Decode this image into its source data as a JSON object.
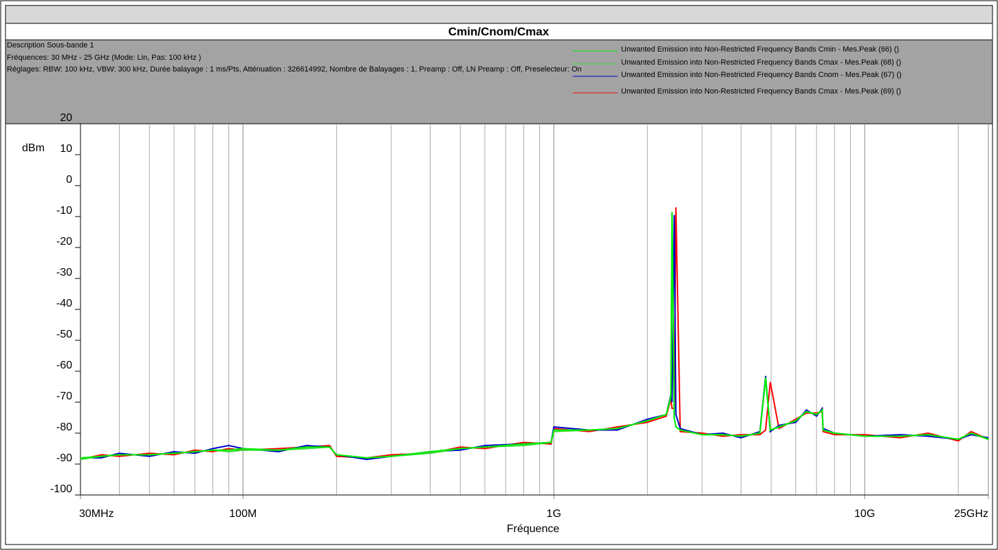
{
  "chart_data": {
    "type": "line",
    "title": "Cmin/Cnom/Cmax",
    "annotations": [
      "Description Sous-bande 1",
      "Fréquences: 30 MHz - 25 GHz (Mode: Lin, Pas: 100 kHz )",
      "Réglages: RBW: 100 kHz, VBW: 300 kHz, Durée balayage : 1 ms/Pts, Atténuation : 326614992, Nombre de Balayages : 1, Preamp : Off, LN Preamp : Off, Preselecteur: On"
    ],
    "y_label": "dBm",
    "x_label": "Fréquence",
    "xscale": "log",
    "xlim": [
      30000000,
      25000000000
    ],
    "xticks": [
      {
        "value": 30000000,
        "label": "30MHz"
      },
      {
        "value": 100000000,
        "label": "100M"
      },
      {
        "value": 1000000000,
        "label": "1G"
      },
      {
        "value": 10000000000,
        "label": "10G"
      },
      {
        "value": 25000000000,
        "label": "25GHz"
      }
    ],
    "xminorticks": [
      40000000,
      50000000,
      60000000,
      70000000,
      80000000,
      90000000,
      200000000,
      300000000,
      400000000,
      500000000,
      600000000,
      700000000,
      800000000,
      900000000,
      2000000000,
      3000000000,
      4000000000,
      5000000000,
      6000000000,
      7000000000,
      8000000000,
      9000000000,
      20000000000
    ],
    "ylim": [
      -100,
      20
    ],
    "yticks": [
      -100,
      -90,
      -80,
      -70,
      -60,
      -50,
      -40,
      -30,
      -20,
      -10,
      0,
      10,
      20
    ],
    "grid": true,
    "legend": "top-right",
    "x": [
      30000000,
      35000000,
      40000000,
      50000000,
      60000000,
      70000000,
      80000000,
      90000000,
      100000000,
      130000000,
      160000000,
      190000000,
      200000000,
      250000000,
      300000000,
      400000000,
      500000000,
      600000000,
      800000000,
      980000000,
      1000000000,
      1300000000,
      1600000000,
      2000000000,
      2300000000,
      2380000000,
      2400000000,
      2440000000,
      2470000000,
      2550000000,
      3000000000,
      3500000000,
      4000000000,
      4600000000,
      4800000000,
      4970000000,
      5300000000,
      6000000000,
      6500000000,
      7000000000,
      7300000000,
      7350000000,
      8000000000,
      10000000000,
      13000000000,
      16000000000,
      20000000000,
      22000000000,
      25000000000
    ],
    "series": [
      {
        "name": "Unwanted Emission into Non-Restricted Frequency Bands Cmax - Mes.Peak (69) ()",
        "color": "#ff0000",
        "values": [
          -88.5,
          -87,
          -87.5,
          -86.5,
          -87,
          -85.5,
          -86,
          -85,
          -85.5,
          -85,
          -84.5,
          -84,
          -87.5,
          -88,
          -87,
          -86.5,
          -84.5,
          -85,
          -83,
          -83.5,
          -78.5,
          -79.5,
          -78,
          -76.5,
          -74.5,
          -69,
          -72,
          -72,
          -7,
          -79.5,
          -80,
          -81,
          -80.5,
          -80.5,
          -79,
          -63.5,
          -78.5,
          -75.5,
          -73.5,
          -73.5,
          -73,
          -79.5,
          -80.5,
          -80.5,
          -81.5,
          -80,
          -82.5,
          -79.5,
          -82
        ]
      },
      {
        "name": "Unwanted Emission into Non-Restricted Frequency Bands Cnom - Mes.Peak (67) ()",
        "color": "#0000cc",
        "values": [
          -88,
          -88,
          -86.5,
          -87.5,
          -86,
          -86.5,
          -85,
          -84,
          -85,
          -86,
          -84,
          -84.5,
          -87,
          -88.5,
          -87.5,
          -86,
          -85.5,
          -84,
          -83.5,
          -83,
          -78,
          -79,
          -79,
          -75.5,
          -74,
          -67.5,
          -70,
          -9.5,
          -74,
          -78.5,
          -80.5,
          -80,
          -81.5,
          -79.5,
          -61.5,
          -79.5,
          -77.5,
          -76.5,
          -72.5,
          -74.5,
          -72,
          -78.5,
          -80,
          -81,
          -80.5,
          -81,
          -82,
          -80.5,
          -81.5
        ]
      },
      {
        "name": "Unwanted Emission into Non-Restricted Frequency Bands Cmax - Mes.Peak (68) ()",
        "color": "#33dd33",
        "values": [
          -88.5,
          -87.5,
          -87,
          -87,
          -86.5,
          -86,
          -85.5,
          -86,
          -85.5,
          -85.5,
          -85,
          -84.5,
          -87,
          -88,
          -87.5,
          -86.5,
          -85,
          -84.5,
          -84,
          -83,
          -79.5,
          -79,
          -78.5,
          -76,
          -74,
          -68.5,
          -9,
          -75,
          -78,
          -79,
          -80.5,
          -80.5,
          -81,
          -80,
          -62.5,
          -79,
          -78,
          -76,
          -73,
          -74,
          -72.5,
          -79,
          -80,
          -81,
          -81,
          -80.5,
          -82,
          -80,
          -82
        ]
      },
      {
        "name": "Unwanted Emission into Non-Restricted Frequency Bands Cmin - Mes.Peak (66) ()",
        "color": "#00ee00",
        "values": [
          -88,
          -87.5,
          -87,
          -87,
          -86.5,
          -86,
          -85.5,
          -85.5,
          -85,
          -85.5,
          -84.5,
          -84.5,
          -87,
          -88,
          -87.5,
          -86,
          -85,
          -84.5,
          -83.5,
          -83,
          -79,
          -79,
          -78.5,
          -76,
          -74,
          -68,
          -8.5,
          -75,
          -78,
          -79,
          -80.5,
          -80.5,
          -81,
          -80,
          -62,
          -79,
          -78,
          -76,
          -73,
          -74,
          -72.5,
          -79,
          -80,
          -81,
          -81,
          -80.5,
          -82,
          -80,
          -82
        ]
      }
    ]
  }
}
